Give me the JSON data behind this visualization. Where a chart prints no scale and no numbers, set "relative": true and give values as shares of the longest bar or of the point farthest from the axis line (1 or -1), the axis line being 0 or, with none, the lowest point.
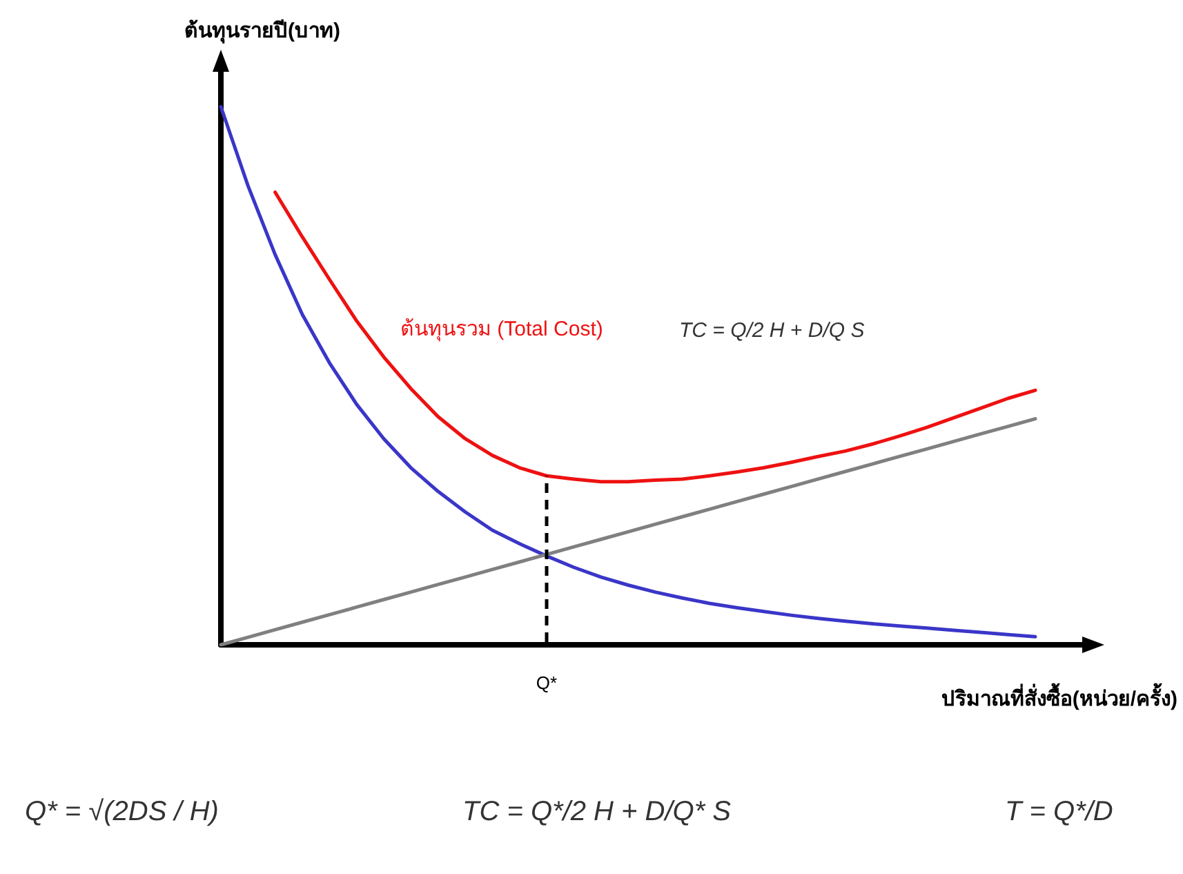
{
  "chart_data": {
    "type": "line",
    "relative": true,
    "xlabel": "ปริมาณที่สั่งซื้อ(หน่วย/ครั้ง)",
    "ylabel": "ต้นทุนรายปี(บาท)",
    "categories": [
      null,
      null,
      null,
      null,
      null,
      null,
      null,
      null,
      null,
      null,
      null,
      null,
      null,
      null,
      null,
      null,
      null,
      null,
      null,
      null,
      null,
      null,
      null,
      null,
      null,
      null,
      null,
      null,
      null,
      null,
      null
    ],
    "series": [
      {
        "name": "ต้นทุนรวม (Total Cost)",
        "color": "#ee1111",
        "values": [
          null,
          null,
          0.841,
          0.758,
          0.679,
          0.602,
          0.535,
          0.476,
          0.424,
          0.383,
          0.352,
          0.329,
          0.314,
          0.308,
          0.303,
          0.303,
          0.306,
          0.308,
          0.314,
          0.321,
          0.329,
          0.339,
          0.35,
          0.36,
          0.373,
          0.388,
          0.404,
          0.422,
          0.44,
          0.458,
          0.473
        ]
      },
      {
        "color": "#3a36c8",
        "values": [
          1,
          0.853,
          0.725,
          0.614,
          0.524,
          0.447,
          0.383,
          0.329,
          0.285,
          0.247,
          0.213,
          0.188,
          0.165,
          0.144,
          0.126,
          0.111,
          0.098,
          0.087,
          0.077,
          0.069,
          0.062,
          0.055,
          0.049,
          0.044,
          0.039,
          0.035,
          0.031,
          0.027,
          0.023,
          0.019,
          0.015
        ]
      },
      {
        "color": "#808080",
        "values": [
          0,
          0.014,
          0.028,
          0.042,
          0.056,
          0.07,
          0.084,
          0.098,
          0.112,
          0.126,
          0.14,
          0.154,
          0.168,
          0.182,
          0.196,
          0.21,
          0.224,
          0.238,
          0.252,
          0.266,
          0.28,
          0.294,
          0.308,
          0.322,
          0.336,
          0.35,
          0.364,
          0.378,
          0.392,
          0.406,
          0.42
        ]
      }
    ],
    "annotations": [
      "TC = Q/2 H + D/Q S",
      "Q*",
      "Q* = √(2DS / H)",
      "TC = Q*/2 H + D/Q* S",
      "T = Q*/D"
    ],
    "legend": false,
    "grid": false,
    "marker": "none",
    "line_style": "solid"
  }
}
